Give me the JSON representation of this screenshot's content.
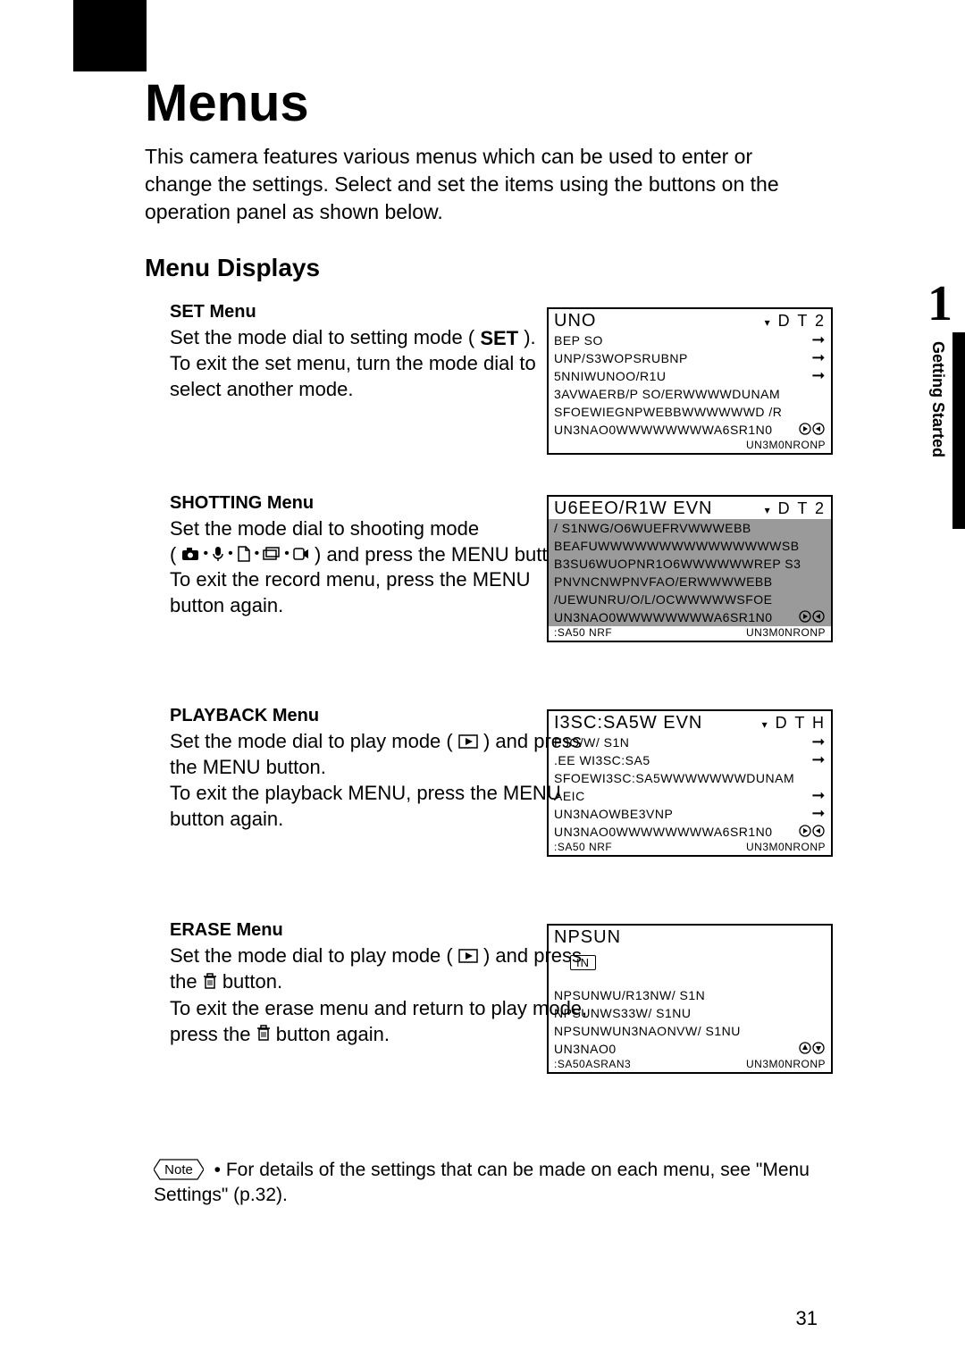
{
  "page": {
    "title": "Menus",
    "intro": "This camera features various menus which can be used to enter or change the settings. Select and set the items using the buttons on the operation panel as shown below.",
    "section_heading": "Menu Displays",
    "side_tab_number": "1",
    "side_tab_label": "Getting Started",
    "page_number": "31"
  },
  "set": {
    "heading": "SET Menu",
    "l1a": "Set the mode dial to setting mode ( ",
    "l1b": " ).",
    "l2": "To exit the set menu, turn the mode dial to select another mode.",
    "set_label": "SET"
  },
  "shooting": {
    "heading": "SHOTTING Menu",
    "l1": "Set the mode dial to shooting mode",
    "l2a": "( ",
    "l2b": " ) and press the MENU button.",
    "l3": "To exit the record menu, press the MENU button again."
  },
  "playback": {
    "heading": "PLAYBACK Menu",
    "l1a": "Set the mode dial to play mode ( ",
    "l1b": " ) and press the MENU button.",
    "l2": "To exit the playback MENU, press the MENU button again."
  },
  "erase": {
    "heading": "ERASE Menu",
    "l1a": "Set the mode dial to play mode ( ",
    "l1b": " ) and press the ",
    "l1c": " button.",
    "l2a": "To exit the erase menu and return to play mode, press the ",
    "l2b": " button again."
  },
  "note": {
    "badge": "Note",
    "text": "For details of the settings that can be made on each menu, see \"Menu Settings\" (p.32)."
  },
  "menu_set": {
    "title": "UNO",
    "rhs": "D T 2",
    "rows": [
      {
        "l": "BEP SO",
        "r": "→"
      },
      {
        "l": "UNP/S3WOPSRUBNP",
        "r": "→"
      },
      {
        "l": "5NNIWUNOO/R1U",
        "r": "→"
      },
      {
        "l": "3AVWAERB/P SO/ERWWWWDUNAM",
        "r": ""
      },
      {
        "l": "SFOEWIEGNPWEBBWWWWWWD  /R",
        "r": ""
      },
      {
        "l": "UN3NAO0WWWWWWWWA6SR1N0",
        "r": "◂▸"
      }
    ],
    "footer_l": "",
    "footer_r": "UN3M0NRONP"
  },
  "menu_rec": {
    "title": "U6EEO/R1W EVN",
    "rhs": "D T 2",
    "rows": [
      {
        "l": "/  S1NWG/O6WUEFRVWWWEBB",
        "r": "",
        "hl": true
      },
      {
        "l": "BEAFUWWWWWWWWWWWWWWWSB",
        "r": "",
        "hl": true
      },
      {
        "l": "B3SU6WUOPNR1O6WWWWWWREP  S3",
        "r": "",
        "hl": true
      },
      {
        "l": "PNVNCNWPNVFAO/ERWWWWEBB",
        "r": "",
        "hl": true
      },
      {
        "l": "/UEWUNRU/O/L/OCWWWWWSFOE",
        "r": "",
        "hl": true
      },
      {
        "l": "UN3NAO0WWWWWWWWA6SR1N0",
        "r": "◂▸",
        "hl": true
      }
    ],
    "footer_l": ":SA50 NRF",
    "footer_r": "UN3M0NRONP"
  },
  "menu_play": {
    "title": "I3SC:SA5W EVN",
    "rhs": "D T H",
    "rows": [
      {
        "l": "F3O/W/ S1N",
        "r": "→"
      },
      {
        "l": ".EE WI3SC:SA5",
        "r": "→"
      },
      {
        "l": "SFOEWI3SC:SA5WWWWWWWDUNAM",
        "r": ""
      },
      {
        "l": "AEIC",
        "r": "→"
      },
      {
        "l": "UN3NAOWBE3VNP",
        "r": "→"
      },
      {
        "l": "UN3NAO0WWWWWWWWA6SR1N0",
        "r": "◂▸"
      }
    ],
    "footer_l": ":SA50 NRF",
    "footer_r": "UN3M0NRONP"
  },
  "menu_erase": {
    "title": "NPSUN",
    "in_label": "IN",
    "rows": [
      {
        "l": "NPSUNWU/R13NW/  S1N",
        "r": ""
      },
      {
        "l": "NPSUNWS33W/ S1NU",
        "r": ""
      },
      {
        "l": "NPSUNWUN3NAONVW/ S1NU",
        "r": ""
      },
      {
        "l": "UN3NAO0",
        "r": "▴▾"
      }
    ],
    "footer_l": ":SA50ASRAN3",
    "footer_r": "UN3M0NRONP"
  },
  "icons": {
    "dot": "•"
  }
}
